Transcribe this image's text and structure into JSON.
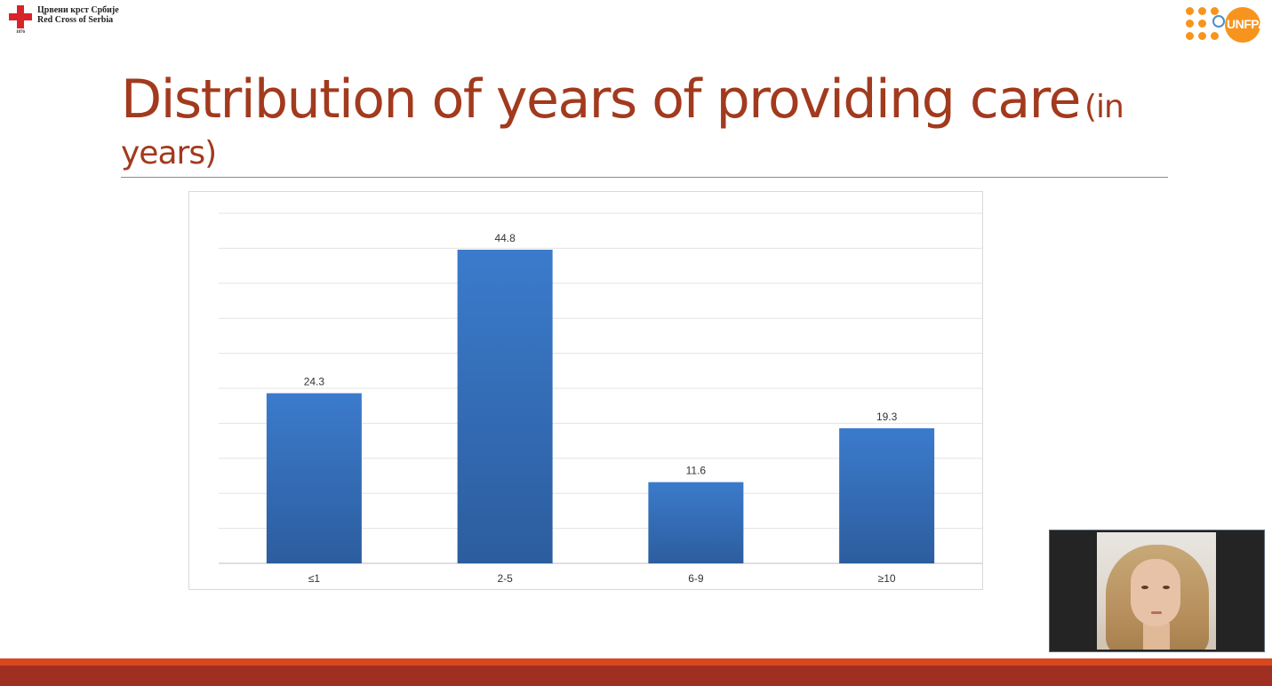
{
  "header": {
    "left_logo": {
      "line1": "Црвени крст Србије",
      "line2": "Red Cross of Serbia",
      "year": "1876",
      "cross_color": "#d8232a"
    },
    "right_logo": {
      "text": "UNFPA",
      "color": "#f7941d"
    }
  },
  "slide": {
    "title_main": "Distribution of years of providing care",
    "title_small": "(in years)"
  },
  "chart_data": {
    "type": "bar",
    "categories": [
      "≤1",
      "2-5",
      "6-9",
      "≥10"
    ],
    "values": [
      24.3,
      44.8,
      11.6,
      19.3
    ],
    "data_labels": [
      "24.3",
      "44.8",
      "11.6",
      "19.3"
    ],
    "title": "",
    "xlabel": "",
    "ylabel": "",
    "ylim": [
      0,
      50
    ],
    "gridlines": true,
    "bar_color_top": "#3b7bcc",
    "bar_color_bottom": "#2c5d9e"
  },
  "video": {
    "participant": "speaker-video"
  },
  "colors": {
    "title": "#a23a1e",
    "footer": "#9f2f20",
    "footer_accent": "#d8481f"
  }
}
